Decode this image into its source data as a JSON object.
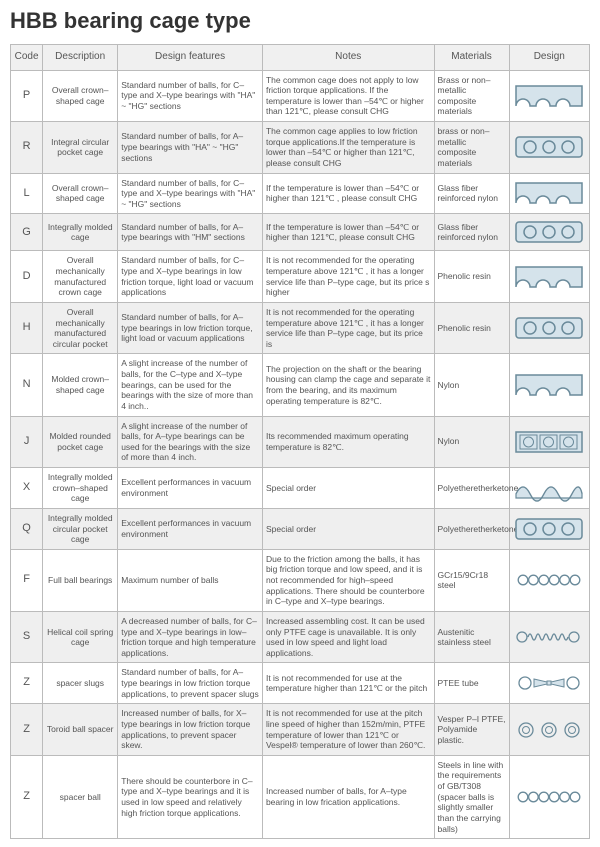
{
  "title": "HBB bearing cage type",
  "headers": {
    "code": "Code",
    "description": "Description",
    "design_features": "Design features",
    "notes": "Notes",
    "materials": "Materials",
    "design": "Design"
  },
  "rows": [
    {
      "code": "P",
      "description": "Overall crown–shaped cage",
      "features": "Standard number of balls, for C–type and X–type bearings with \"HA\" ~ \"HG\" sections",
      "notes": "The common cage does not apply to low friction torque applications. If the temperature is lower than –54℃ or higher than 121℃, please consult CHG",
      "materials": "Brass or non–metallic composite materials",
      "alt": false,
      "design": "crown"
    },
    {
      "code": "R",
      "description": "Integral circular pocket cage",
      "features": "Standard number of balls, for A–type bearings with \"HA\" ~ \"HG\" sections",
      "notes": "The common cage applies to low friction torque applications.If the temperature is lower than –54℃ or higher than 121℃, please consult CHG",
      "materials": "brass or non–metallic composite materials",
      "alt": true,
      "design": "pocket"
    },
    {
      "code": "L",
      "description": "Overall crown–shaped cage",
      "features": "Standard number of balls, for C–type and X–type bearings with \"HA\" ~ \"HG\" sections",
      "notes": "If the temperature is lower than –54℃ or higher than 121℃ , please consult CHG",
      "materials": "Glass fiber reinforced nylon",
      "alt": false,
      "design": "crown"
    },
    {
      "code": "G",
      "description": "Integrally molded cage",
      "features": "Standard number of balls, for A–type bearings with \"HM\" sections",
      "notes": "If the temperature is lower than –54℃ or higher than 121℃, please consult CHG",
      "materials": "Glass fiber reinforced nylon",
      "alt": true,
      "design": "pocket"
    },
    {
      "code": "D",
      "description": "Overall mechanically manufactured crown cage",
      "features": "Standard number of balls, for C–type and X–type bearings in low friction torque, light load or vacuum applications",
      "notes": "It is not recommended for the operating temperature above 121℃ , it has a longer service life than P–type cage, but its price s higher",
      "materials": "Phenolic resin",
      "alt": false,
      "design": "crown"
    },
    {
      "code": "H",
      "description": "Overall mechanically manufactured circular pocket",
      "features": "Standard number of balls, for A–type bearings in low friction torque, light load or vacuum applications",
      "notes": "It is not recommended for the operating temperature above 121℃ , it has a longer service life than P–type cage, but its price is",
      "materials": "Phenolic resin",
      "alt": true,
      "design": "pocket"
    },
    {
      "code": "N",
      "description": "Molded crown–shaped cage",
      "features": "A slight increase of the number of balls, for the C–type and X–type bearings, can be used for the bearings with the size of more than 4 inch..",
      "notes": "The projection on the shaft or the bearing housing can clamp the cage and separate it from the bearing, and its maximum operating temperature is 82℃.",
      "materials": "Nylon",
      "alt": false,
      "design": "crown"
    },
    {
      "code": "J",
      "description": "Molded rounded pocket cage",
      "features": "A slight increase of the number of balls, for A–type bearings can be used for the bearings with the size of more than 4 inch.",
      "notes": "Its recommended maximum operating temperature is 82℃.",
      "materials": "Nylon",
      "alt": true,
      "design": "squarepocket"
    },
    {
      "code": "X",
      "description": "Integrally molded crown–shaped cage",
      "features": "Excellent performances in vacuum environment",
      "notes": "Special order",
      "materials": "Polyetheretherketone",
      "alt": false,
      "design": "wavy"
    },
    {
      "code": "Q",
      "description": "Integrally molded circular pocket cage",
      "features": "Excellent performances in vacuum environment",
      "notes": "Special order",
      "materials": "Polyetheretherketone",
      "alt": true,
      "design": "pocket"
    },
    {
      "code": "F",
      "description": "Full ball bearings",
      "features": "Maximum number of balls",
      "notes": "Due to the friction among the balls, it has big friction torque and low speed, and it is not recommended for high–speed applications. There should be counterbore in C–type and X–type bearings.",
      "materials": "GCr15/9Cr18 steel",
      "alt": false,
      "design": "balls6"
    },
    {
      "code": "S",
      "description": "Helical coil spring cage",
      "features": "A decreased number of balls, for C–type and X–type bearings in low–friction torque and high temperature applications.",
      "notes": "Increased assembling cost. It can be used only PTFE cage is unavailable. It is only used in low speed and light load applications.",
      "materials": "Austenitic stainless steel",
      "alt": true,
      "design": "coil"
    },
    {
      "code": "Z",
      "description": "spacer slugs",
      "features": "Standard number of balls, for A–type bearings in low friction torque applications, to prevent spacer slugs",
      "notes": "It is not recommended for use at the temperature higher than 121℃ or the pitch",
      "materials": "PTEE tube",
      "alt": false,
      "design": "bowtie"
    },
    {
      "code": "Z",
      "description": "Toroid ball spacer",
      "features": "Increased number of balls, for X–type bearings in low friction torque applications, to prevent spacer skew.",
      "notes": "It is not recommended for use at the pitch line speed of higher than 152m/min, PTFE temperature of lower than 121℃ or Vespel® temperature of lower than 260℃.",
      "materials": "Vesper P–I PTFE, Polyamide plastic.",
      "alt": true,
      "design": "toroid"
    },
    {
      "code": "Z",
      "description": "spacer ball",
      "features": "There should be counterbore in C–type and X–type bearings and it is used in low speed and relatively high friction torque applications.",
      "notes": "Increased number of balls, for A–type bearing in low frication applications.",
      "materials": "Steels in line with the requirements of GB/T308 (spacer balls is slightly smaller than the carrying balls)",
      "alt": false,
      "design": "balls6"
    }
  ],
  "svg_colors": {
    "stroke": "#6a8a9a",
    "fill_light": "#d5e3eb",
    "fill_none": "none"
  },
  "column_widths": {
    "code": 30,
    "description": 70,
    "features": 135,
    "notes": 160,
    "materials": 70,
    "design": 75
  }
}
